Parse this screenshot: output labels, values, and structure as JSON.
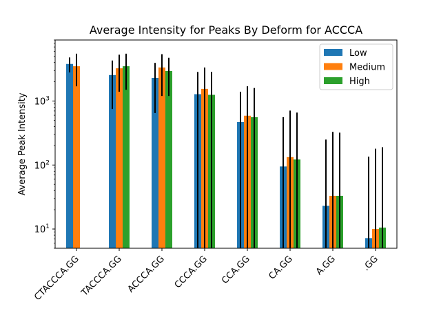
{
  "chart_data": {
    "type": "bar",
    "title": "Average Intensity for Peaks By Deform for ACCCA",
    "xlabel": "",
    "ylabel": "Average Peak Intensity",
    "yscale": "log",
    "ylim": [
      5,
      9000
    ],
    "y_ticks": [
      {
        "value": 10,
        "base": "10",
        "exp": "1"
      },
      {
        "value": 100,
        "base": "10",
        "exp": "2"
      },
      {
        "value": 1000,
        "base": "10",
        "exp": "3"
      }
    ],
    "categories": [
      "CTACCCA.GG",
      "TACCCA.GG",
      "ACCCA.GG",
      "CCCA.GG",
      "CCA.GG",
      "CA.GG",
      "A.GG",
      ".GG"
    ],
    "series": [
      {
        "name": "Low",
        "color": "#1f77b4",
        "values": [
          3800,
          2550,
          2300,
          1280,
          470,
          95,
          23,
          7.2
        ],
        "err_low": [
          2800,
          750,
          650,
          3,
          3,
          3,
          3,
          3
        ],
        "err_high": [
          4800,
          4300,
          3950,
          2850,
          1400,
          560,
          250,
          135
        ]
      },
      {
        "name": "Medium",
        "color": "#ff7f0e",
        "values": [
          3500,
          3250,
          3350,
          1550,
          590,
          133,
          33,
          10
        ],
        "err_low": [
          1700,
          1400,
          1200,
          3,
          3,
          3,
          3,
          3
        ],
        "err_high": [
          5500,
          5300,
          5400,
          3350,
          1700,
          710,
          330,
          180
        ]
      },
      {
        "name": "High",
        "color": "#2ca02c",
        "values": [
          null,
          3500,
          2950,
          1250,
          560,
          122,
          33,
          10.5
        ],
        "err_low": [
          null,
          1500,
          1200,
          3,
          3,
          3,
          3,
          3
        ],
        "err_high": [
          null,
          5500,
          4750,
          2850,
          1600,
          660,
          320,
          190
        ]
      }
    ],
    "legend": {
      "position": "top-right"
    },
    "grid": false
  }
}
